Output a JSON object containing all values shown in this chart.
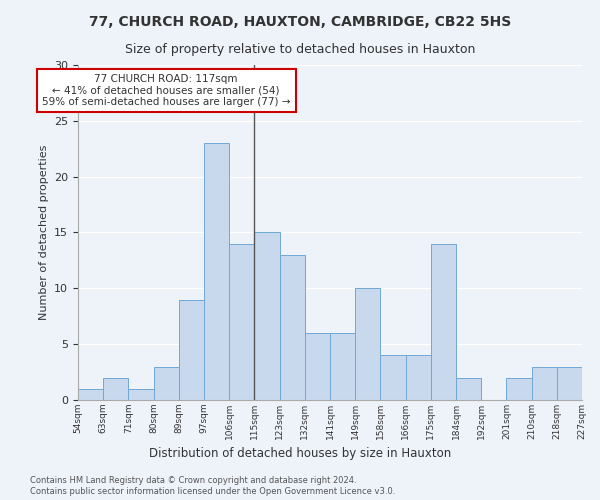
{
  "title1": "77, CHURCH ROAD, HAUXTON, CAMBRIDGE, CB22 5HS",
  "title2": "Size of property relative to detached houses in Hauxton",
  "xlabel": "Distribution of detached houses by size in Hauxton",
  "ylabel": "Number of detached properties",
  "bin_labels": [
    "54sqm",
    "63sqm",
    "71sqm",
    "80sqm",
    "89sqm",
    "97sqm",
    "106sqm",
    "115sqm",
    "123sqm",
    "132sqm",
    "141sqm",
    "149sqm",
    "158sqm",
    "166sqm",
    "175sqm",
    "184sqm",
    "192sqm",
    "201sqm",
    "210sqm",
    "218sqm",
    "227sqm"
  ],
  "bar_values": [
    1,
    2,
    1,
    3,
    9,
    23,
    14,
    15,
    13,
    6,
    6,
    10,
    4,
    4,
    14,
    2,
    0,
    2,
    3,
    3
  ],
  "bar_color": "#c9d9ed",
  "bar_edge_color": "#6fa8d6",
  "annotation_text": "77 CHURCH ROAD: 117sqm\n← 41% of detached houses are smaller (54)\n59% of semi-detached houses are larger (77) →",
  "annotation_box_color": "#ffffff",
  "annotation_box_edge_color": "#cc0000",
  "ylim": [
    0,
    30
  ],
  "yticks": [
    0,
    5,
    10,
    15,
    20,
    25,
    30
  ],
  "footer1": "Contains HM Land Registry data © Crown copyright and database right 2024.",
  "footer2": "Contains public sector information licensed under the Open Government Licence v3.0.",
  "bg_color": "#eef2f9",
  "plot_bg_color": "#eef2f9"
}
